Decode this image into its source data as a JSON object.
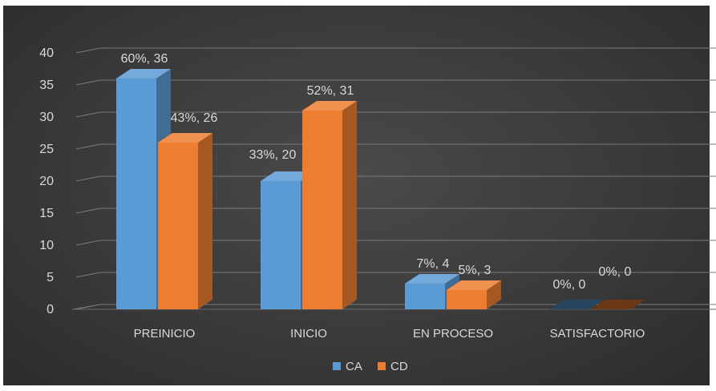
{
  "chart_data": {
    "type": "bar",
    "style": "3d-clustered-column",
    "categories": [
      "PREINICIO",
      "INICIO",
      "EN PROCESO",
      "SATISFACTORIO"
    ],
    "series": [
      {
        "name": "CA",
        "color": "#5b9bd5",
        "values": [
          36,
          20,
          4,
          0
        ],
        "labels": [
          "60%, 36",
          "33%, 20",
          "7%, 4",
          "0%, 0"
        ]
      },
      {
        "name": "CD",
        "color": "#ed7d31",
        "values": [
          26,
          31,
          3,
          0
        ],
        "labels": [
          "43%, 26",
          "52%, 31",
          "5%, 3",
          "0%, 0"
        ]
      }
    ],
    "y_ticks": [
      "0",
      "5",
      "10",
      "15",
      "20",
      "25",
      "30",
      "35",
      "40"
    ],
    "ylim": [
      0,
      40
    ],
    "grid": true,
    "legend_position": "bottom",
    "background_color": "#3a3a3a",
    "text_color": "#d9d9d9"
  }
}
